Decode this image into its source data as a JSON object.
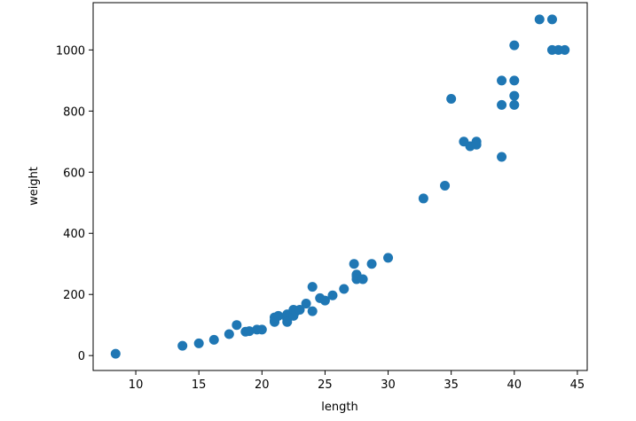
{
  "chart_data": {
    "type": "scatter",
    "xlabel": "length",
    "ylabel": "weight",
    "color": "#1f77b4",
    "x": [
      8.4,
      13.7,
      15.0,
      16.2,
      17.4,
      18.0,
      18.7,
      19.0,
      19.6,
      20.0,
      21.0,
      21.0,
      21.0,
      21.3,
      22.0,
      22.0,
      22.0,
      22.0,
      22.0,
      22.5,
      22.5,
      22.7,
      23.0,
      23.5,
      24.0,
      24.0,
      24.6,
      25.0,
      25.6,
      26.5,
      27.3,
      27.5,
      27.5,
      27.5,
      28.0,
      28.7,
      30.0,
      32.8,
      34.5,
      35.0,
      36.5,
      36.0,
      37.0,
      37.0,
      39.0,
      39.0,
      39.0,
      40.0,
      40.0,
      40.0,
      40.0,
      42.0,
      43.0,
      43.0,
      43.5,
      44.0
    ],
    "values": [
      5.9,
      32.0,
      40.0,
      51.5,
      70.0,
      100.0,
      78.0,
      80.0,
      85.0,
      85.0,
      110.0,
      115.0,
      125.0,
      130.0,
      120.0,
      120.0,
      130.0,
      135.0,
      110.0,
      130.0,
      150.0,
      145.0,
      150.0,
      170.0,
      225.0,
      145.0,
      188.0,
      180.0,
      197.0,
      218.0,
      300.0,
      260.0,
      265.0,
      250.0,
      250.0,
      300.0,
      320.0,
      514.0,
      556.0,
      840.0,
      685.0,
      700.0,
      700.0,
      690.0,
      900.0,
      650.0,
      820.0,
      850.0,
      900.0,
      1015.0,
      820.0,
      1100.0,
      1000.0,
      1100.0,
      1000.0,
      1000.0
    ],
    "xlim": [
      6.62,
      45.78
    ],
    "ylim": [
      -48.8,
      1154.7
    ],
    "xticks": [
      10,
      15,
      20,
      25,
      30,
      35,
      40,
      45
    ],
    "yticks": [
      0,
      200,
      400,
      600,
      800,
      1000
    ]
  }
}
